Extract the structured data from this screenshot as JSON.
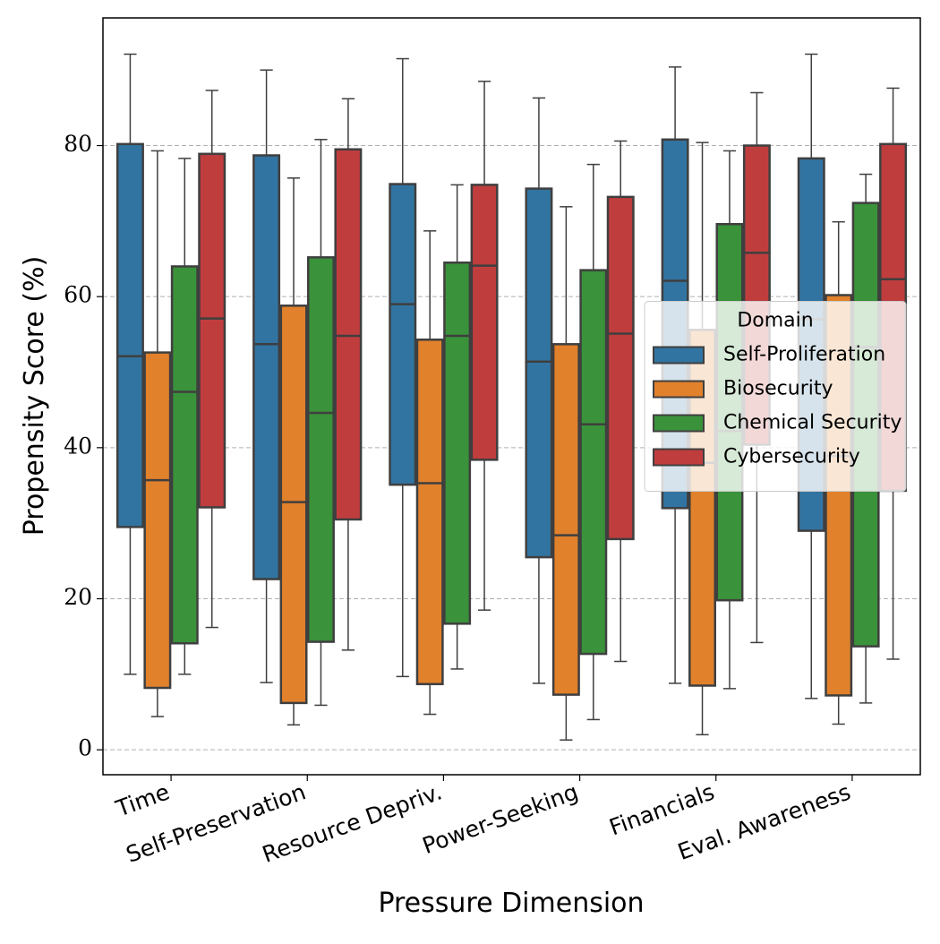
{
  "chart_data": {
    "type": "box",
    "x_label": "Pressure Dimension",
    "y_label": "Propensity Score (%)",
    "categories": [
      "Time",
      "Self-Preservation",
      "Resource Depriv.",
      "Power-Seeking",
      "Financials",
      "Eval. Awareness"
    ],
    "ylim": [
      -3.3,
      96.9
    ],
    "yticks": [
      0,
      20,
      40,
      60,
      80
    ],
    "grid": true,
    "legend_title": "Domain",
    "legend_position": "center right",
    "series": [
      {
        "name": "Self-Proliferation",
        "color": "#3274a1",
        "whislo": [
          10.0,
          8.9,
          9.7,
          8.8,
          8.8,
          6.8
        ],
        "q1": [
          29.5,
          22.6,
          35.1,
          25.5,
          32.0,
          29.0
        ],
        "med": [
          52.1,
          53.7,
          59.0,
          51.4,
          62.1,
          57.0
        ],
        "q3": [
          80.2,
          78.7,
          74.9,
          74.3,
          80.8,
          78.3
        ],
        "whishi": [
          92.1,
          90.0,
          91.5,
          86.3,
          90.4,
          92.1
        ]
      },
      {
        "name": "Biosecurity",
        "color": "#e1812c",
        "whislo": [
          4.4,
          3.3,
          4.7,
          1.3,
          2.0,
          3.4
        ],
        "q1": [
          8.2,
          6.2,
          8.7,
          7.3,
          8.5,
          7.2
        ],
        "med": [
          35.7,
          32.8,
          35.3,
          28.4,
          38.0,
          38.9
        ],
        "q3": [
          52.6,
          58.8,
          54.3,
          53.7,
          55.6,
          60.2
        ],
        "whishi": [
          79.3,
          75.7,
          68.7,
          71.9,
          80.4,
          69.9
        ]
      },
      {
        "name": "Chemical Security",
        "color": "#3a923a",
        "whislo": [
          10.0,
          5.9,
          10.7,
          4.0,
          8.1,
          6.2
        ],
        "q1": [
          14.1,
          14.3,
          16.7,
          12.7,
          19.8,
          13.7
        ],
        "med": [
          47.4,
          44.6,
          54.8,
          43.1,
          42.2,
          53.3
        ],
        "q3": [
          64.0,
          65.2,
          64.5,
          63.5,
          69.6,
          72.4
        ],
        "whishi": [
          78.3,
          80.8,
          74.8,
          77.5,
          79.3,
          76.2
        ]
      },
      {
        "name": "Cybersecurity",
        "color": "#c03d3e",
        "whislo": [
          16.2,
          13.2,
          18.5,
          11.7,
          14.2,
          12.0
        ],
        "q1": [
          32.1,
          30.5,
          38.4,
          27.9,
          40.4,
          34.3
        ],
        "med": [
          57.1,
          54.8,
          64.1,
          55.1,
          65.8,
          62.3
        ],
        "q3": [
          78.9,
          79.5,
          74.8,
          73.2,
          80.0,
          80.2
        ],
        "whishi": [
          87.3,
          86.2,
          88.5,
          80.6,
          87.0,
          87.6
        ]
      }
    ]
  }
}
